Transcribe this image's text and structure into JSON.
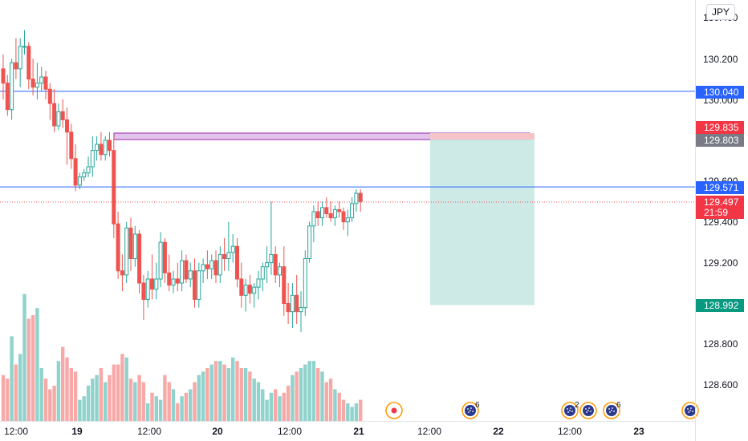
{
  "currency": "JPY",
  "price_axis": {
    "ticks": [
      "130.400",
      "130.200",
      "130.000",
      "129.600",
      "129.400",
      "129.200",
      "128.800",
      "128.600"
    ]
  },
  "time_axis": {
    "ticks": [
      "12:00",
      "19",
      "12:00",
      "20",
      "12:00",
      "21",
      "12:00",
      "22",
      "12:00",
      "23"
    ]
  },
  "price_tags": [
    {
      "label": "130.040",
      "color": "#2962ff"
    },
    {
      "label": "129.835",
      "color": "#f23645"
    },
    {
      "label": "129.803",
      "color": "#787b86"
    },
    {
      "label": "129.571",
      "color": "#2962ff"
    },
    {
      "label": "129.497",
      "color": "#f23645"
    },
    {
      "label": "21:59",
      "color": "#f23645"
    },
    {
      "label": "128.992",
      "color": "#089981"
    }
  ],
  "event_badges": [
    {
      "icon": "record-event-icon",
      "count": ""
    },
    {
      "icon": "economic-event-icon",
      "count": "6"
    },
    {
      "icon": "economic-event-icon",
      "count": "2"
    },
    {
      "icon": "economic-event-icon",
      "count": ""
    },
    {
      "icon": "economic-event-icon",
      "count": "6"
    },
    {
      "icon": "economic-event-icon",
      "count": ""
    }
  ],
  "colors": {
    "up": "#26a69a",
    "down": "#ef5350",
    "vol_up": "#8fd3cc",
    "vol_down": "#f7a9a7",
    "horizontal_line": "#2962ff",
    "zone_fill": "#e1c4ea",
    "zone_border": "#9c27b0",
    "target_fill": "#cdeae6",
    "stop_fill": "#f5c4c7"
  },
  "chart_data": {
    "type": "candlestick",
    "price_range": [
      128.48,
      130.48
    ],
    "levels": [
      130.04,
      129.835,
      129.803,
      129.571,
      129.497,
      128.992
    ],
    "candles": [
      [
        130.15,
        130.22,
        130.0,
        130.08
      ],
      [
        130.08,
        130.12,
        129.92,
        129.95
      ],
      [
        129.95,
        130.2,
        129.9,
        130.18
      ],
      [
        130.18,
        130.3,
        130.1,
        130.15
      ],
      [
        130.15,
        130.3,
        130.06,
        130.26
      ],
      [
        130.26,
        130.34,
        130.22,
        130.26
      ],
      [
        130.26,
        130.28,
        130.05,
        130.1
      ],
      [
        130.1,
        130.2,
        130.02,
        130.06
      ],
      [
        130.06,
        130.18,
        130.0,
        130.08
      ],
      [
        130.08,
        130.16,
        130.04,
        130.11
      ],
      [
        130.11,
        130.14,
        130.0,
        130.05
      ],
      [
        130.05,
        130.08,
        129.9,
        129.98
      ],
      [
        129.98,
        130.05,
        129.84,
        129.87
      ],
      [
        129.87,
        129.98,
        129.85,
        129.94
      ],
      [
        129.94,
        130.0,
        129.86,
        129.9
      ],
      [
        129.9,
        129.96,
        129.68,
        129.84
      ],
      [
        129.84,
        129.88,
        129.66,
        129.71
      ],
      [
        129.71,
        129.78,
        129.55,
        129.58
      ],
      [
        129.58,
        129.64,
        129.56,
        129.62
      ],
      [
        129.62,
        129.66,
        129.6,
        129.64
      ],
      [
        129.64,
        129.72,
        129.62,
        129.67
      ],
      [
        129.67,
        129.82,
        129.62,
        129.75
      ],
      [
        129.75,
        129.82,
        129.7,
        129.78
      ],
      [
        129.78,
        129.84,
        129.7,
        129.73
      ],
      [
        129.73,
        129.82,
        129.7,
        129.8
      ],
      [
        129.8,
        129.84,
        129.72,
        129.75
      ],
      [
        129.75,
        129.82,
        129.32,
        129.39
      ],
      [
        129.39,
        129.45,
        129.12,
        129.16
      ],
      [
        129.16,
        129.24,
        129.06,
        129.14
      ],
      [
        129.14,
        129.4,
        129.1,
        129.37
      ],
      [
        129.37,
        129.42,
        129.16,
        129.22
      ],
      [
        129.22,
        129.38,
        129.18,
        129.34
      ],
      [
        129.34,
        129.36,
        129.05,
        129.1
      ],
      [
        129.1,
        129.14,
        128.92,
        129.02
      ],
      [
        129.02,
        129.16,
        128.98,
        129.12
      ],
      [
        129.12,
        129.24,
        129.02,
        129.07
      ],
      [
        129.07,
        129.2,
        129.02,
        129.12
      ],
      [
        129.12,
        129.35,
        129.08,
        129.3
      ],
      [
        129.3,
        129.32,
        129.1,
        129.15
      ],
      [
        129.15,
        129.24,
        129.06,
        129.09
      ],
      [
        129.09,
        129.16,
        129.05,
        129.12
      ],
      [
        129.12,
        129.2,
        129.06,
        129.1
      ],
      [
        129.1,
        129.26,
        129.06,
        129.21
      ],
      [
        129.21,
        129.24,
        129.1,
        129.12
      ],
      [
        129.12,
        129.2,
        129.08,
        129.16
      ],
      [
        129.16,
        129.22,
        128.98,
        129.02
      ],
      [
        129.02,
        129.2,
        128.98,
        129.16
      ],
      [
        129.16,
        129.22,
        129.1,
        129.19
      ],
      [
        129.19,
        129.26,
        129.12,
        129.17
      ],
      [
        129.17,
        129.24,
        129.12,
        129.21
      ],
      [
        129.21,
        129.26,
        129.1,
        129.14
      ],
      [
        129.14,
        129.28,
        129.1,
        129.24
      ],
      [
        129.24,
        129.32,
        129.16,
        129.22
      ],
      [
        129.22,
        129.4,
        129.16,
        129.25
      ],
      [
        129.25,
        129.34,
        129.2,
        129.28
      ],
      [
        129.28,
        129.32,
        129.08,
        129.12
      ],
      [
        129.12,
        129.2,
        128.98,
        129.04
      ],
      [
        129.04,
        129.12,
        128.96,
        129.09
      ],
      [
        129.09,
        129.14,
        129.0,
        129.05
      ],
      [
        129.05,
        129.1,
        128.98,
        129.08
      ],
      [
        129.08,
        129.16,
        129.02,
        129.12
      ],
      [
        129.12,
        129.2,
        129.06,
        129.18
      ],
      [
        129.18,
        129.28,
        129.1,
        129.2
      ],
      [
        129.2,
        129.5,
        129.14,
        129.24
      ],
      [
        129.24,
        129.28,
        129.1,
        129.14
      ],
      [
        129.14,
        129.2,
        129.08,
        129.18
      ],
      [
        129.18,
        129.28,
        128.94,
        129.0
      ],
      [
        129.0,
        129.1,
        128.9,
        128.96
      ],
      [
        128.96,
        129.1,
        128.88,
        129.04
      ],
      [
        129.04,
        129.14,
        128.9,
        128.96
      ],
      [
        128.96,
        129.06,
        128.86,
        128.98
      ],
      [
        128.98,
        129.26,
        128.94,
        129.22
      ],
      [
        129.22,
        129.4,
        129.2,
        129.38
      ],
      [
        129.38,
        129.48,
        129.3,
        129.45
      ],
      [
        129.45,
        129.5,
        129.38,
        129.42
      ],
      [
        129.42,
        129.5,
        129.38,
        129.47
      ],
      [
        129.47,
        129.52,
        129.42,
        129.44
      ],
      [
        129.44,
        129.5,
        129.4,
        129.42
      ],
      [
        129.42,
        129.48,
        129.38,
        129.46
      ],
      [
        129.46,
        129.5,
        129.42,
        129.45
      ],
      [
        129.45,
        129.47,
        129.36,
        129.4
      ],
      [
        129.4,
        129.46,
        129.33,
        129.42
      ],
      [
        129.42,
        129.52,
        129.4,
        129.49
      ],
      [
        129.49,
        129.56,
        129.45,
        129.54
      ],
      [
        129.54,
        129.56,
        129.45,
        129.5
      ]
    ],
    "volumes": [
      26,
      24,
      48,
      32,
      38,
      72,
      58,
      60,
      64,
      30,
      24,
      18,
      20,
      34,
      42,
      36,
      30,
      28,
      12,
      14,
      20,
      24,
      26,
      30,
      22,
      26,
      32,
      32,
      38,
      36,
      24,
      22,
      26,
      22,
      10,
      16,
      14,
      12,
      26,
      22,
      18,
      10,
      14,
      16,
      18,
      22,
      26,
      28,
      30,
      32,
      34,
      34,
      32,
      30,
      36,
      34,
      30,
      30,
      28,
      24,
      22,
      18,
      12,
      16,
      18,
      14,
      16,
      20,
      26,
      28,
      30,
      32,
      34,
      34,
      30,
      28,
      22,
      24,
      18,
      16,
      12,
      10,
      8,
      10,
      12
    ]
  }
}
